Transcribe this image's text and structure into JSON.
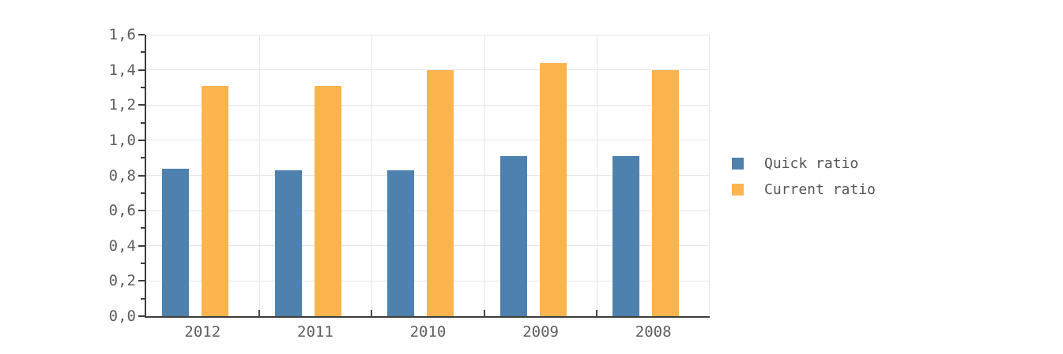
{
  "chart_data": {
    "type": "bar",
    "title": "",
    "xlabel": "",
    "ylabel": "",
    "categories": [
      "2012",
      "2011",
      "2010",
      "2009",
      "2008"
    ],
    "series": [
      {
        "name": "Quick ratio",
        "color": "#4e81ae",
        "values": [
          0.84,
          0.83,
          0.83,
          0.91,
          0.91
        ]
      },
      {
        "name": "Current ratio",
        "color": "#fdb44e",
        "values": [
          1.31,
          1.31,
          1.4,
          1.44,
          1.4
        ]
      }
    ],
    "ylim": [
      0,
      1.6
    ],
    "y_major_step": 0.2,
    "y_minor_step": 0.1,
    "y_tick_labels": [
      "0,0",
      "0,2",
      "0,4",
      "0,6",
      "0,8",
      "1,0",
      "1,2",
      "1,4",
      "1,6"
    ],
    "decimal_separator": ",",
    "grid": true,
    "legend_position": "right"
  },
  "colors": {
    "axis": "#3d3d3d",
    "gridline": "#e7e7e7",
    "tick_text": "#5e5e5e",
    "legend_text": "#575757",
    "background": "#ffffff"
  }
}
